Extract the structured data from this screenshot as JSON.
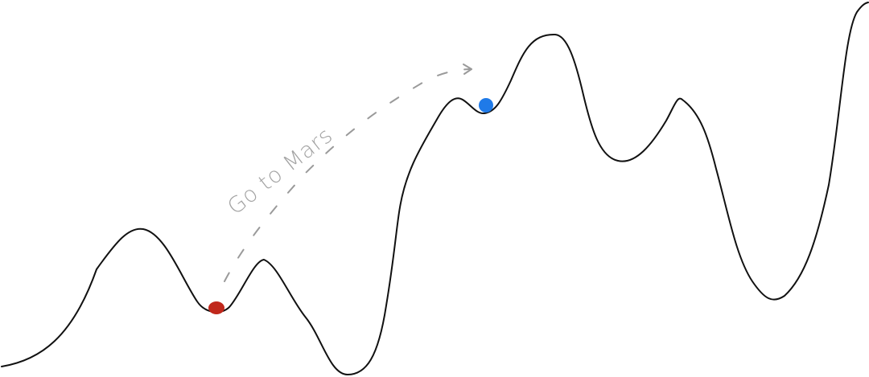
{
  "annotation": {
    "label": "Go to Mars"
  },
  "colors": {
    "landscape": "#111111",
    "annotation": "#9a9a9a",
    "current_position": "#c0281c",
    "target_position": "#1f7ae8",
    "background": "#ffffff"
  }
}
